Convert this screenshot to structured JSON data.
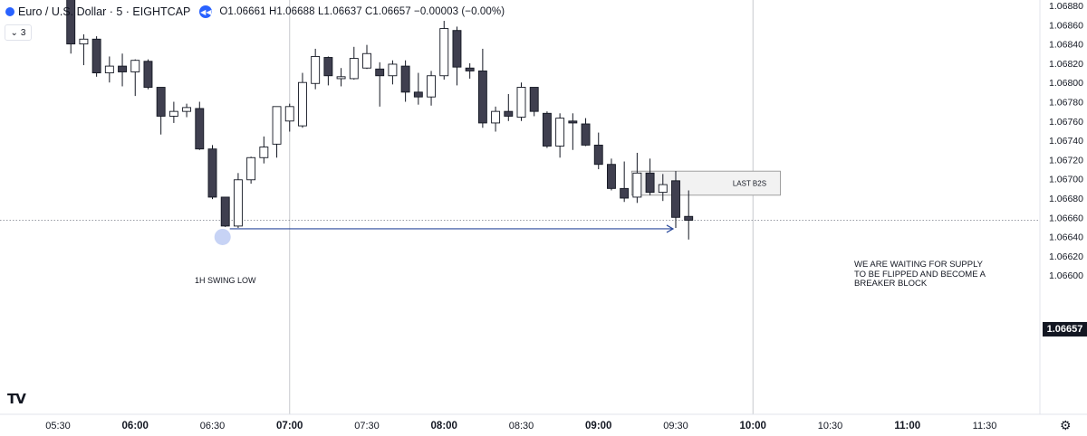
{
  "header": {
    "symbol_title": "Euro / U.S. Dollar · 5 · EIGHTCAP",
    "ohlc": {
      "o_label": "O",
      "o": "1.06661",
      "h_label": "H",
      "h": "1.06688",
      "l_label": "L",
      "l": "1.06637",
      "c_label": "C",
      "c": "1.06657",
      "change": "−0.00003 (−0.00%)"
    },
    "collapse_count": "3",
    "collapse_icon": "chevron-down-icon",
    "replay_icon": "rewind-icon"
  },
  "price_axis": {
    "ticks": [
      "1.06880",
      "1.06860",
      "1.06840",
      "1.06820",
      "1.06800",
      "1.06780",
      "1.06760",
      "1.06740",
      "1.06720",
      "1.06700",
      "1.06680",
      "1.06660",
      "1.06640",
      "1.06620",
      "1.06600"
    ],
    "last_price": "1.06657"
  },
  "time_axis": {
    "ticks": [
      "05:30",
      "06:00",
      "06:30",
      "07:00",
      "07:30",
      "08:00",
      "08:30",
      "09:00",
      "09:30",
      "10:00",
      "10:30",
      "11:00",
      "11:30"
    ]
  },
  "annotations": {
    "zone_label": "LAST B2S",
    "note_line1": "WE ARE WAITING FOR SUPPLY",
    "note_line2": "TO BE FLIPPED AND BECOME A",
    "note_line3": "BREAKER BLOCK",
    "swing_label": "1H SWING LOW"
  },
  "colors": {
    "bull_body": "#ffffff",
    "bear_body": "#3f3f4f",
    "wick": "#131722",
    "arrow": "#2b4a9c",
    "swing_dot": "#c7d3f5",
    "zone_fill": "#f2f2f2",
    "zone_border": "#8a8a8a",
    "grid": "#c7c9ce",
    "price_tag": "#131722"
  },
  "chart_data": {
    "type": "candlestick",
    "timeframe_minutes": 5,
    "ylim": [
      1.066,
      1.0689
    ],
    "candles": [
      {
        "t": "05:35",
        "o": 1.069,
        "h": 1.06905,
        "l": 1.0683,
        "c": 1.0684
      },
      {
        "t": "05:40",
        "o": 1.0684,
        "h": 1.0685,
        "l": 1.06818,
        "c": 1.06845
      },
      {
        "t": "05:45",
        "o": 1.06845,
        "h": 1.06848,
        "l": 1.06806,
        "c": 1.0681
      },
      {
        "t": "05:50",
        "o": 1.0681,
        "h": 1.06827,
        "l": 1.068,
        "c": 1.06817
      },
      {
        "t": "05:55",
        "o": 1.06817,
        "h": 1.0683,
        "l": 1.06796,
        "c": 1.06811
      },
      {
        "t": "06:00",
        "o": 1.06811,
        "h": 1.06824,
        "l": 1.06786,
        "c": 1.06823
      },
      {
        "t": "06:05",
        "o": 1.06822,
        "h": 1.06824,
        "l": 1.06793,
        "c": 1.06795
      },
      {
        "t": "06:10",
        "o": 1.06795,
        "h": 1.06795,
        "l": 1.06746,
        "c": 1.06765
      },
      {
        "t": "06:15",
        "o": 1.06765,
        "h": 1.0678,
        "l": 1.06758,
        "c": 1.0677
      },
      {
        "t": "06:20",
        "o": 1.0677,
        "h": 1.06778,
        "l": 1.06764,
        "c": 1.06774
      },
      {
        "t": "06:25",
        "o": 1.06773,
        "h": 1.0678,
        "l": 1.0673,
        "c": 1.06731
      },
      {
        "t": "06:30",
        "o": 1.06731,
        "h": 1.06735,
        "l": 1.06679,
        "c": 1.06681
      },
      {
        "t": "06:35",
        "o": 1.06681,
        "h": 1.06681,
        "l": 1.0665,
        "c": 1.06651
      },
      {
        "t": "06:40",
        "o": 1.06651,
        "h": 1.06706,
        "l": 1.06649,
        "c": 1.06699
      },
      {
        "t": "06:45",
        "o": 1.06699,
        "h": 1.06723,
        "l": 1.06695,
        "c": 1.06722
      },
      {
        "t": "06:50",
        "o": 1.06722,
        "h": 1.06744,
        "l": 1.06716,
        "c": 1.06733
      },
      {
        "t": "06:55",
        "o": 1.06736,
        "h": 1.06774,
        "l": 1.06722,
        "c": 1.06775
      },
      {
        "t": "07:00",
        "o": 1.0676,
        "h": 1.06778,
        "l": 1.06749,
        "c": 1.06775
      },
      {
        "t": "07:05",
        "o": 1.06755,
        "h": 1.0681,
        "l": 1.06753,
        "c": 1.068
      },
      {
        "t": "07:10",
        "o": 1.06799,
        "h": 1.06835,
        "l": 1.06793,
        "c": 1.06827
      },
      {
        "t": "07:15",
        "o": 1.06826,
        "h": 1.06827,
        "l": 1.06797,
        "c": 1.06807
      },
      {
        "t": "07:20",
        "o": 1.06804,
        "h": 1.06815,
        "l": 1.06796,
        "c": 1.06806
      },
      {
        "t": "07:25",
        "o": 1.06804,
        "h": 1.06837,
        "l": 1.06803,
        "c": 1.06825
      },
      {
        "t": "07:30",
        "o": 1.06815,
        "h": 1.06839,
        "l": 1.06814,
        "c": 1.0683
      },
      {
        "t": "07:35",
        "o": 1.06814,
        "h": 1.06821,
        "l": 1.06775,
        "c": 1.06807
      },
      {
        "t": "07:40",
        "o": 1.06807,
        "h": 1.06823,
        "l": 1.06798,
        "c": 1.06819
      },
      {
        "t": "07:45",
        "o": 1.06817,
        "h": 1.06823,
        "l": 1.0678,
        "c": 1.0679
      },
      {
        "t": "07:50",
        "o": 1.0679,
        "h": 1.0681,
        "l": 1.06777,
        "c": 1.06785
      },
      {
        "t": "07:55",
        "o": 1.06785,
        "h": 1.06812,
        "l": 1.06776,
        "c": 1.06807
      },
      {
        "t": "08:00",
        "o": 1.06807,
        "h": 1.06864,
        "l": 1.06803,
        "c": 1.06856
      },
      {
        "t": "08:05",
        "o": 1.06854,
        "h": 1.06858,
        "l": 1.06797,
        "c": 1.06816
      },
      {
        "t": "08:10",
        "o": 1.06815,
        "h": 1.0682,
        "l": 1.06804,
        "c": 1.06812
      },
      {
        "t": "08:15",
        "o": 1.06812,
        "h": 1.06835,
        "l": 1.06753,
        "c": 1.06758
      },
      {
        "t": "08:20",
        "o": 1.06758,
        "h": 1.06775,
        "l": 1.06749,
        "c": 1.0677
      },
      {
        "t": "08:25",
        "o": 1.0677,
        "h": 1.06788,
        "l": 1.0676,
        "c": 1.06765
      },
      {
        "t": "08:30",
        "o": 1.06764,
        "h": 1.068,
        "l": 1.0676,
        "c": 1.06795
      },
      {
        "t": "08:35",
        "o": 1.06795,
        "h": 1.06795,
        "l": 1.06765,
        "c": 1.0677
      },
      {
        "t": "08:40",
        "o": 1.06768,
        "h": 1.0677,
        "l": 1.06732,
        "c": 1.06734
      },
      {
        "t": "08:45",
        "o": 1.06734,
        "h": 1.06768,
        "l": 1.06722,
        "c": 1.06763
      },
      {
        "t": "08:50",
        "o": 1.0676,
        "h": 1.06768,
        "l": 1.0673,
        "c": 1.06758
      },
      {
        "t": "08:55",
        "o": 1.06757,
        "h": 1.06763,
        "l": 1.06734,
        "c": 1.06735
      },
      {
        "t": "09:00",
        "o": 1.06735,
        "h": 1.06748,
        "l": 1.0671,
        "c": 1.06715
      },
      {
        "t": "09:05",
        "o": 1.06715,
        "h": 1.06721,
        "l": 1.06688,
        "c": 1.0669
      },
      {
        "t": "09:10",
        "o": 1.0669,
        "h": 1.06718,
        "l": 1.06676,
        "c": 1.0668
      },
      {
        "t": "09:15",
        "o": 1.06681,
        "h": 1.06727,
        "l": 1.06675,
        "c": 1.06706
      },
      {
        "t": "09:20",
        "o": 1.06706,
        "h": 1.06721,
        "l": 1.06683,
        "c": 1.06686
      },
      {
        "t": "09:25",
        "o": 1.06686,
        "h": 1.06705,
        "l": 1.06677,
        "c": 1.06694
      },
      {
        "t": "09:30",
        "o": 1.06698,
        "h": 1.06708,
        "l": 1.06649,
        "c": 1.0666
      },
      {
        "t": "09:35",
        "o": 1.06661,
        "h": 1.06688,
        "l": 1.06637,
        "c": 1.06657
      }
    ],
    "levels": [
      {
        "label": "1H SWING LOW",
        "y": 1.0665,
        "x_from": "06:35",
        "x_to": "09:30"
      }
    ],
    "zones": [
      {
        "label": "LAST B2S",
        "y_top": 1.06708,
        "y_bottom": 1.06683,
        "x_from": "09:15",
        "x_to": "10:05"
      }
    ]
  }
}
